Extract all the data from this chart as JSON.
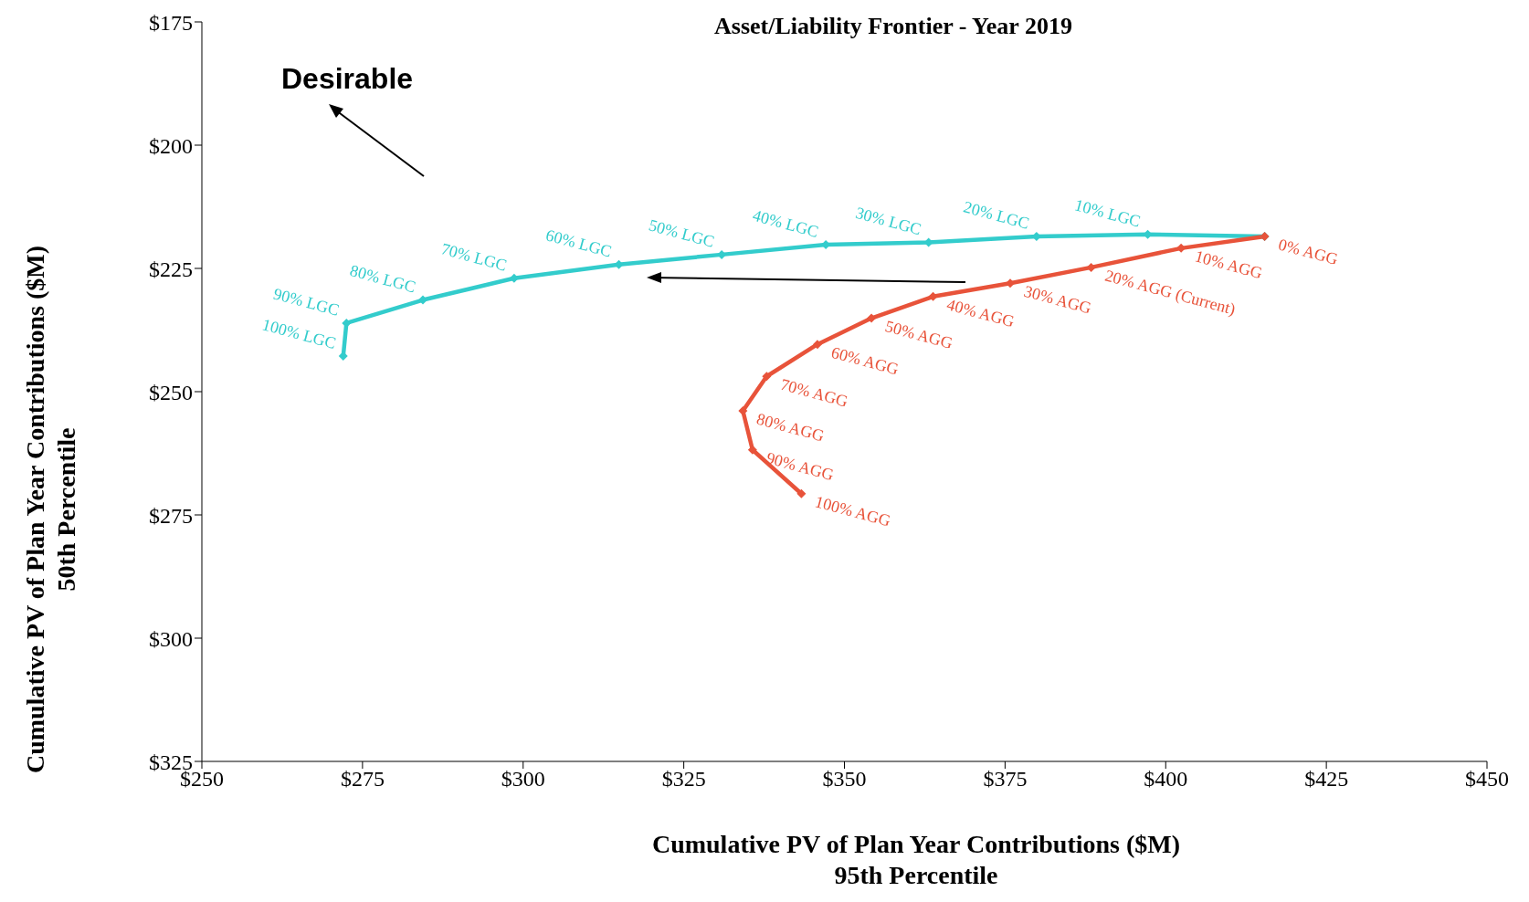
{
  "chart_data": {
    "type": "line",
    "title": "Asset/Liability Frontier - Year 2019",
    "xlabel": "Cumulative PV of Plan Year Contributions ($M)\n95th Percentile",
    "ylabel": "Cumulative PV of Plan Year Contributions ($M)\n50th Percentile",
    "annotations": [
      "Desirable",
      {
        "text": "100% LGC",
        "x": 272.0,
        "y": 242.8
      },
      {
        "text": "90% LGC",
        "x": 272.5,
        "y": 236.1
      },
      {
        "text": "80% LGC",
        "x": 284.4,
        "y": 231.4
      },
      {
        "text": "70% LGC",
        "x": 298.6,
        "y": 227.0
      },
      {
        "text": "60% LGC",
        "x": 314.9,
        "y": 224.2
      },
      {
        "text": "50% LGC",
        "x": 330.9,
        "y": 222.2
      },
      {
        "text": "40% LGC",
        "x": 347.1,
        "y": 220.2
      },
      {
        "text": "30% LGC",
        "x": 363.1,
        "y": 219.7
      },
      {
        "text": "20% LGC",
        "x": 379.9,
        "y": 218.5
      },
      {
        "text": "10% LGC",
        "x": 397.2,
        "y": 218.1
      },
      {
        "text": "0% AGG",
        "x": 415.4,
        "y": 218.5
      },
      {
        "text": "10% AGG",
        "x": 402.4,
        "y": 220.9
      },
      {
        "text": "20% AGG (Current)",
        "x": 388.4,
        "y": 224.8
      },
      {
        "text": "30% AGG",
        "x": 375.8,
        "y": 228.0
      },
      {
        "text": "40% AGG",
        "x": 363.8,
        "y": 230.7
      },
      {
        "text": "50% AGG",
        "x": 354.2,
        "y": 235.1
      },
      {
        "text": "60% AGG",
        "x": 345.8,
        "y": 240.4
      },
      {
        "text": "70% AGG",
        "x": 337.9,
        "y": 246.9
      },
      {
        "text": "80% AGG",
        "x": 334.2,
        "y": 253.9
      },
      {
        "text": "90% AGG",
        "x": 335.7,
        "y": 261.8
      },
      {
        "text": "100% AGG",
        "x": 343.3,
        "y": 270.7
      }
    ],
    "xlim": [
      250,
      450
    ],
    "xticks": [
      {
        "value": 250,
        "label": "$250"
      },
      {
        "value": 275,
        "label": "$275"
      },
      {
        "value": 300,
        "label": "$300"
      },
      {
        "value": 325,
        "label": "$325"
      },
      {
        "value": 350,
        "label": "$350"
      },
      {
        "value": 375,
        "label": "$375"
      },
      {
        "value": 400,
        "label": "$400"
      },
      {
        "value": 425,
        "label": "$425"
      },
      {
        "value": 450,
        "label": "$450"
      }
    ],
    "ylim": [
      325,
      175
    ],
    "yticks": [
      {
        "value": 175,
        "label": "$175"
      },
      {
        "value": 200,
        "label": "$200"
      },
      {
        "value": 225,
        "label": "$225"
      },
      {
        "value": 250,
        "label": "$250"
      },
      {
        "value": 275,
        "label": "$275"
      },
      {
        "value": 300,
        "label": "$300"
      },
      {
        "value": 325,
        "label": "$325"
      }
    ],
    "marker": "diamond",
    "line_style": "solid",
    "series": [
      {
        "color": "#33cccc",
        "x": [
          272.0,
          272.5,
          284.4,
          298.6,
          314.9,
          330.9,
          347.1,
          363.1,
          379.9,
          397.2,
          415.4
        ],
        "values": [
          242.8,
          236.1,
          231.4,
          227.0,
          224.2,
          222.2,
          220.2,
          219.7,
          218.5,
          218.1,
          218.5
        ]
      },
      {
        "color": "#e8533a",
        "x": [
          415.4,
          402.4,
          388.4,
          375.8,
          363.8,
          354.2,
          345.8,
          337.9,
          334.2,
          335.7,
          343.3
        ],
        "values": [
          218.5,
          220.9,
          224.8,
          228.0,
          230.7,
          235.1,
          240.4,
          246.9,
          253.9,
          261.8,
          270.7
        ]
      }
    ]
  }
}
